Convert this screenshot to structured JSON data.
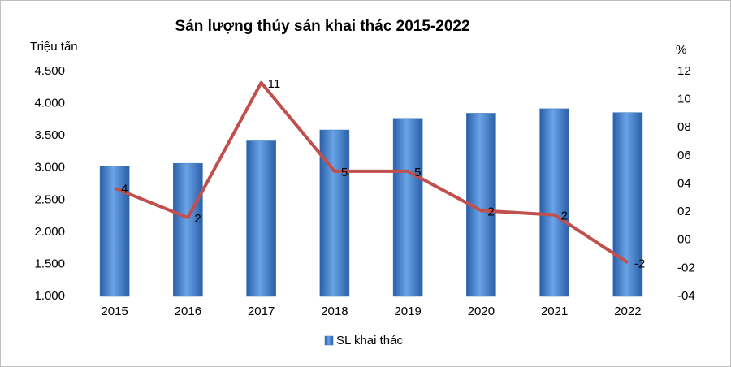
{
  "chart_data": {
    "type": "bar",
    "title": "Sản lượng thủy sản khai thác 2015-2022",
    "y_label": "Triệu tấn",
    "y2_label": "%",
    "categories": [
      "2015",
      "2016",
      "2017",
      "2018",
      "2019",
      "2020",
      "2021",
      "2022"
    ],
    "series": [
      {
        "name": "SL khai thác",
        "type": "bar",
        "color": "#3a78c4",
        "values": [
          3030,
          3070,
          3420,
          3590,
          3770,
          3850,
          3920,
          3860
        ]
      },
      {
        "type": "line",
        "axis": "y2",
        "color": "#c0504d",
        "values": [
          3.7,
          1.6,
          11.2,
          4.9,
          4.9,
          2.1,
          1.8,
          -1.6
        ],
        "value_labels": [
          "4",
          "2",
          "11",
          "5",
          "5",
          "2",
          "2",
          "-2"
        ]
      }
    ],
    "ylim": [
      1000,
      4500
    ],
    "yticks": [
      {
        "value": 1000,
        "label": "1.000"
      },
      {
        "value": 1500,
        "label": "1.500"
      },
      {
        "value": 2000,
        "label": "2.000"
      },
      {
        "value": 2500,
        "label": "2.500"
      },
      {
        "value": 3000,
        "label": "3.000"
      },
      {
        "value": 3500,
        "label": "3.500"
      },
      {
        "value": 4000,
        "label": "4.000"
      },
      {
        "value": 4500,
        "label": "4.500"
      }
    ],
    "y2lim": [
      -4,
      12
    ],
    "y2ticks": [
      {
        "value": -4,
        "label": "-04"
      },
      {
        "value": -2,
        "label": "-02"
      },
      {
        "value": 0,
        "label": "00"
      },
      {
        "value": 2,
        "label": "02"
      },
      {
        "value": 4,
        "label": "04"
      },
      {
        "value": 6,
        "label": "06"
      },
      {
        "value": 8,
        "label": "08"
      },
      10,
      12
    ],
    "grid": false
  }
}
